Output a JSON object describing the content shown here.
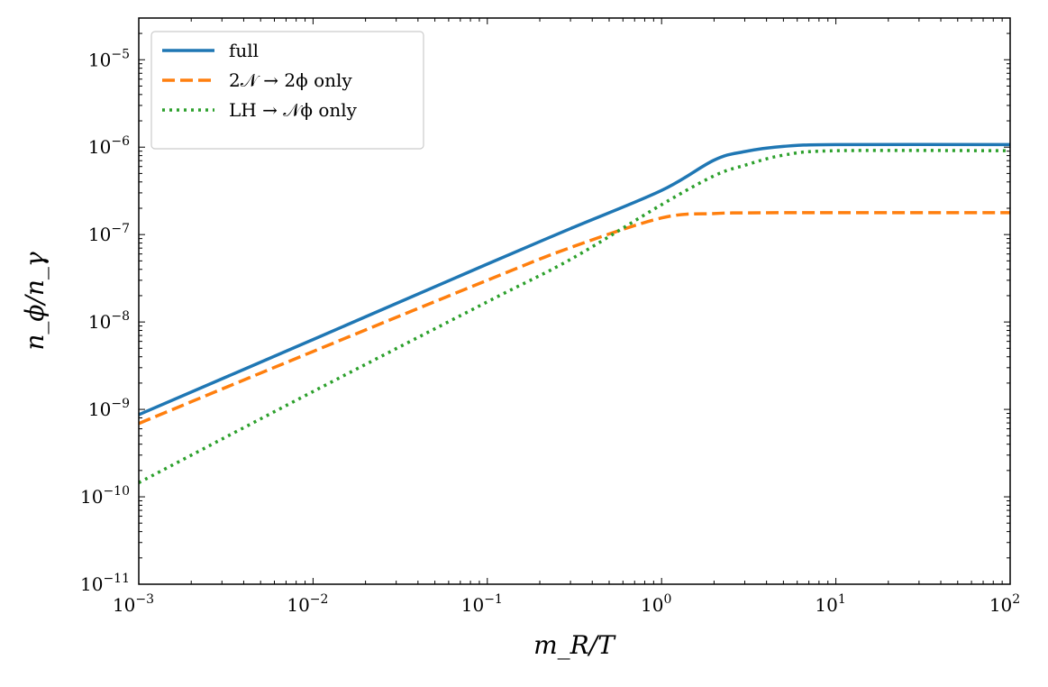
{
  "chart_data": {
    "type": "line",
    "title": "",
    "xlabel": "m_R/T",
    "ylabel": "n_ϕ/n_γ",
    "xscale": "log",
    "yscale": "log",
    "xlim": [
      0.001,
      100
    ],
    "ylim": [
      1e-11,
      3e-05
    ],
    "grid": false,
    "legend_position": "top-left",
    "xticks": [
      {
        "base": "10",
        "exp": "−3",
        "value": 0.001
      },
      {
        "base": "10",
        "exp": "−2",
        "value": 0.01
      },
      {
        "base": "10",
        "exp": "−1",
        "value": 0.1
      },
      {
        "base": "10",
        "exp": "0",
        "value": 1
      },
      {
        "base": "10",
        "exp": "1",
        "value": 10
      },
      {
        "base": "10",
        "exp": "2",
        "value": 100
      }
    ],
    "yticks": [
      {
        "base": "10",
        "exp": "−11",
        "value": 1e-11
      },
      {
        "base": "10",
        "exp": "−10",
        "value": 1e-10
      },
      {
        "base": "10",
        "exp": "−9",
        "value": 1e-09
      },
      {
        "base": "10",
        "exp": "−8",
        "value": 1e-08
      },
      {
        "base": "10",
        "exp": "−7",
        "value": 1e-07
      },
      {
        "base": "10",
        "exp": "−6",
        "value": 1e-06
      },
      {
        "base": "10",
        "exp": "−5",
        "value": 1e-05
      }
    ],
    "x": [
      0.001,
      0.01,
      0.1,
      0.3,
      1,
      2,
      3,
      5,
      10,
      100
    ],
    "series": [
      {
        "name": "full",
        "color": "#1f77b4",
        "style": "solid",
        "values": [
          8.7e-10,
          6.3e-09,
          4.6e-08,
          1.17e-07,
          3.2e-07,
          7.1e-07,
          8.9e-07,
          1.02e-06,
          1.07e-06,
          1.07e-06
        ]
      },
      {
        "name": "2𝒩 → 2ϕ only",
        "color": "#ff7f0e",
        "style": "dashed",
        "values": [
          6.9e-10,
          4.6e-09,
          3e-08,
          7.1e-08,
          1.55e-07,
          1.74e-07,
          1.77e-07,
          1.78e-07,
          1.78e-07,
          1.78e-07
        ]
      },
      {
        "name": "LH → 𝒩ϕ only",
        "color": "#2ca02c",
        "style": "dotted",
        "values": [
          1.45e-10,
          1.6e-09,
          1.7e-08,
          5.2e-08,
          2.2e-07,
          4.7e-07,
          6.2e-07,
          8.1e-07,
          9.1e-07,
          9.1e-07
        ]
      }
    ]
  }
}
